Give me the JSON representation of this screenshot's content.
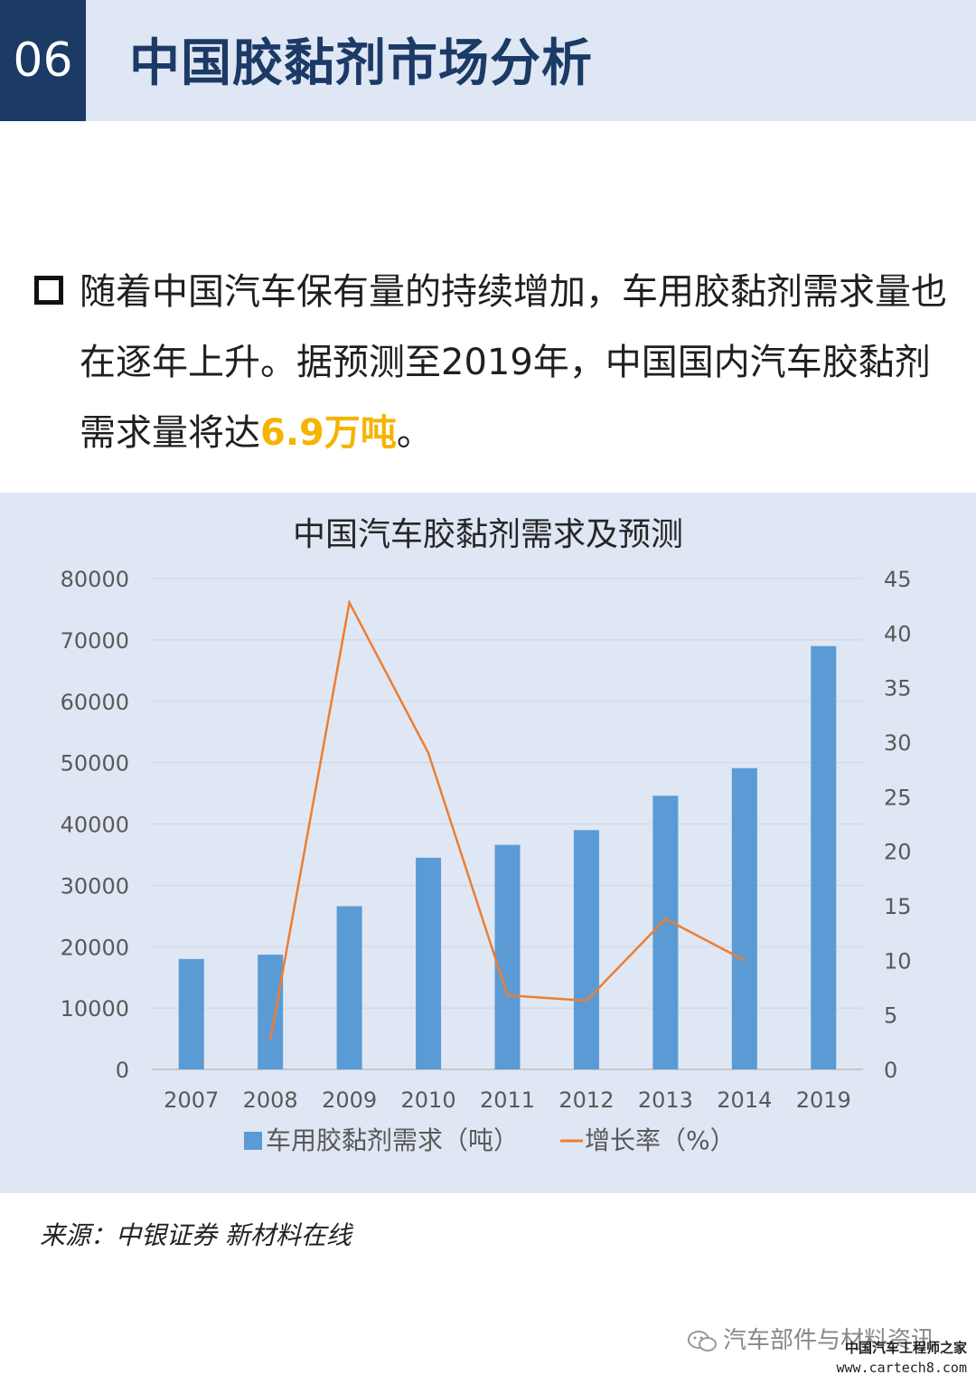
{
  "header": {
    "section_number": "06",
    "title": "中国胶黏剂市场分析"
  },
  "bullet": {
    "text_before": "随着中国汽车保有量的持续增加，车用胶黏剂需求量也在逐年上升。据预测至2019年，中国国内汽车胶黏剂需求量将达",
    "highlight": "6.9万吨",
    "text_after": "。"
  },
  "chart_data": {
    "type": "bar",
    "title": "中国汽车胶黏剂需求及预测",
    "categories": [
      "2007",
      "2008",
      "2009",
      "2010",
      "2011",
      "2012",
      "2013",
      "2014",
      "2019"
    ],
    "y_left": {
      "min": 0,
      "max": 80000,
      "ticks": [
        "0",
        "10000",
        "20000",
        "30000",
        "40000",
        "50000",
        "60000",
        "70000",
        "80000"
      ]
    },
    "y_right": {
      "min": 0,
      "max": 45,
      "ticks": [
        "0",
        "5",
        "10",
        "15",
        "20",
        "25",
        "30",
        "35",
        "40",
        "45"
      ]
    },
    "series": [
      {
        "name": "车用胶黏剂需求（吨）",
        "type": "bar",
        "axis": "left",
        "color": "#5b9bd5",
        "values": [
          18000,
          18700,
          26600,
          34500,
          36600,
          39000,
          44600,
          49100,
          69000
        ]
      },
      {
        "name": "增长率（%）",
        "type": "line",
        "axis": "right",
        "color": "#ed7d31",
        "values": [
          null,
          2.7,
          42.8,
          29.0,
          6.8,
          6.3,
          13.8,
          10.0,
          null
        ]
      }
    ],
    "legend": "bottom",
    "grid": true
  },
  "source": "来源：中银证券 新材料在线",
  "footer": {
    "account": "汽车部件与材料资讯",
    "corner_name": "中国汽车工程师之家",
    "corner_url": "www.cartech8.com"
  }
}
